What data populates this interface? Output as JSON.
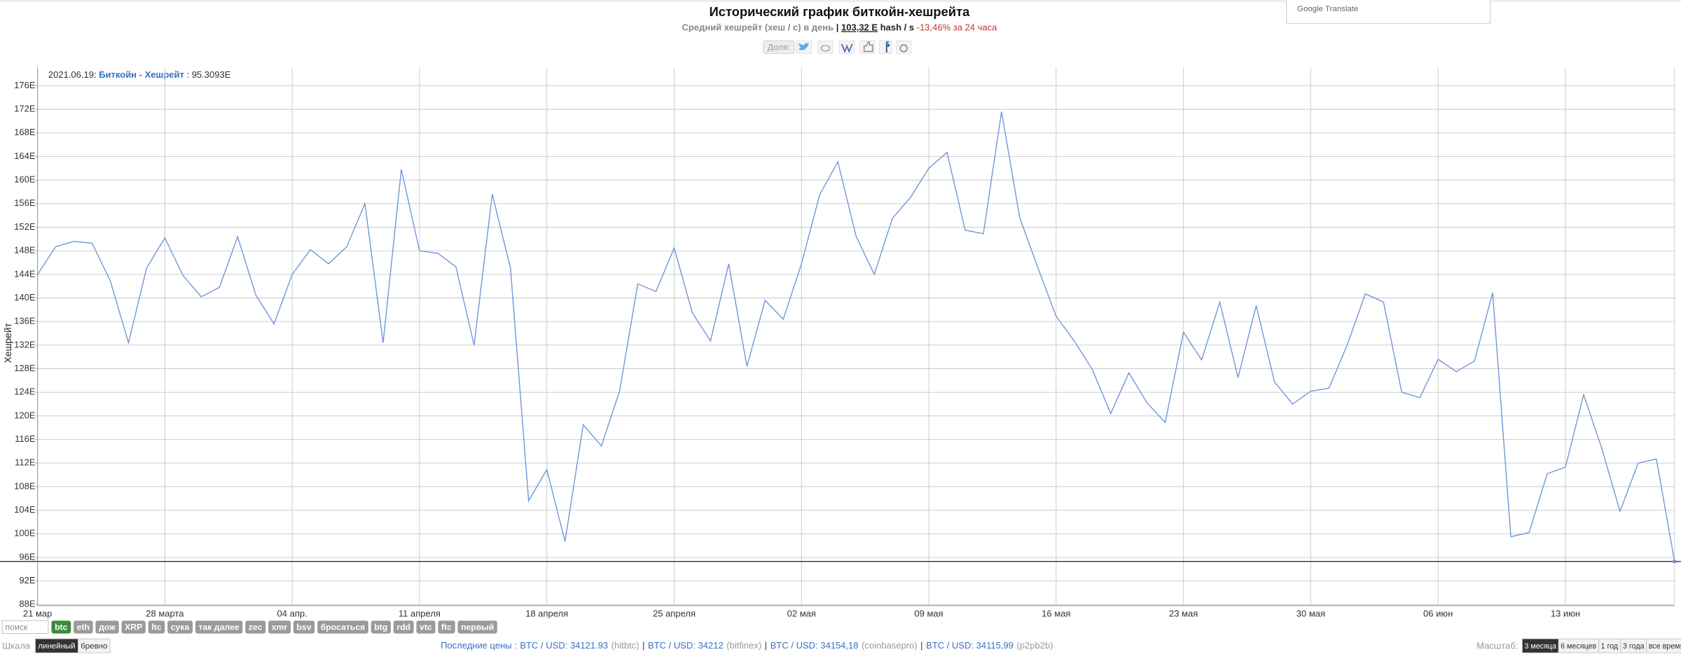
{
  "page": {
    "title": "Исторический график биткойн-хешрейта",
    "subtitle": {
      "label": "Средний хешрейт (хеш / с) в день",
      "separator": "|",
      "current": "103,32 E",
      "unit": "hash / s",
      "change": "-13,46% за 24 часа"
    },
    "share": "Доля:",
    "translate": "Google Translate",
    "search": "поиск",
    "tags": [
      "btc",
      "eth",
      "дож",
      "XRP",
      "ltc",
      "сука",
      "так далее",
      "zec",
      "xmr",
      "bsv",
      "бросаться",
      "btg",
      "rdd",
      "vtc",
      "ftc",
      "первый"
    ],
    "scale_label": "Шкала",
    "scale_options": [
      "линейный",
      "бревно"
    ],
    "prices_label": "Последние цены :",
    "prices": [
      {
        "pair": "BTC / USD: 34121.93",
        "exchange": "(hitbtc)"
      },
      {
        "pair": "BTC / USD: 34212",
        "exchange": "(bitfinex)"
      },
      {
        "pair": "BTC / USD: 34154,18",
        "exchange": "(coinbasepro)"
      },
      {
        "pair": "BTC / USD: 34115,99",
        "exchange": "(p2pb2b)"
      }
    ],
    "price_separator": "|",
    "zoom_label": "Масштаб:",
    "zoom_options": [
      "3 месяца",
      "6 месяцев",
      "1 год",
      "3 года",
      "все время"
    ]
  },
  "chart_data": {
    "type": "line",
    "ylabel": "Хешрейт",
    "tooltip": {
      "date": "2021.06.19:",
      "value_label": ": 95.3093E"
    },
    "log_scale": false,
    "grid": true,
    "categories": [
      "21 мар",
      null,
      null,
      null,
      null,
      null,
      null,
      "28 марта",
      null,
      null,
      null,
      null,
      null,
      null,
      "04 апр.",
      null,
      null,
      null,
      null,
      null,
      null,
      "11 апреля",
      null,
      null,
      null,
      null,
      null,
      null,
      "18 апреля",
      null,
      null,
      null,
      null,
      null,
      null,
      "25 апреля",
      null,
      null,
      null,
      null,
      null,
      null,
      "02 мая",
      null,
      null,
      null,
      null,
      null,
      null,
      "09 мая",
      null,
      null,
      null,
      null,
      null,
      null,
      "16 мая",
      null,
      null,
      null,
      null,
      null,
      null,
      "23 мая",
      null,
      null,
      null,
      null,
      null,
      null,
      "30 мая",
      null,
      null,
      null,
      null,
      null,
      null,
      "06 июн",
      null,
      null,
      null,
      null,
      null,
      null,
      "13 июн",
      null,
      null,
      null,
      null,
      null,
      null
    ],
    "series": [
      {
        "name": "Биткойн - Хешрейт",
        "color": "#6f95d9",
        "values": [
          144.0,
          148.7,
          149.6,
          149.3,
          142.9,
          132.4,
          145.1,
          150.2,
          143.8,
          140.2,
          141.8,
          150.4,
          140.5,
          135.6,
          144.0,
          148.2,
          145.8,
          148.7,
          156.0,
          132.4,
          161.8,
          148.0,
          147.6,
          145.3,
          132.0,
          157.6,
          145.1,
          105.6,
          110.9,
          98.7,
          118.5,
          114.9,
          124.2,
          142.4,
          141.1,
          148.5,
          137.5,
          132.7,
          145.8,
          128.4,
          139.6,
          136.4,
          145.8,
          157.5,
          163.1,
          150.5,
          144.0,
          153.5,
          157.1,
          162.0,
          164.7,
          151.5,
          150.9,
          171.6,
          153.6,
          145.1,
          136.9,
          132.7,
          127.8,
          120.4,
          127.3,
          122.2,
          118.9,
          134.2,
          129.5,
          139.3,
          126.5,
          138.7,
          125.8,
          122.0,
          124.2,
          124.7,
          132.0,
          140.7,
          139.3,
          124.0,
          123.1,
          129.6,
          127.5,
          129.3,
          140.9,
          99.5,
          100.2,
          110.2,
          111.3,
          123.6,
          114.5,
          103.8,
          112.0,
          112.7,
          95.3093
        ]
      }
    ],
    "ylim": [
      88,
      176
    ],
    "yticks": [
      {
        "value": 88,
        "label": "88E"
      },
      {
        "value": 92,
        "label": "92E"
      },
      {
        "value": 96,
        "label": "96E"
      },
      {
        "value": 100,
        "label": "100E"
      },
      {
        "value": 104,
        "label": "104E"
      },
      {
        "value": 108,
        "label": "108E"
      },
      {
        "value": 112,
        "label": "112E"
      },
      {
        "value": 116,
        "label": "116E"
      },
      {
        "value": 120,
        "label": "120E"
      },
      {
        "value": 124,
        "label": "124E"
      },
      {
        "value": 128,
        "label": "128E"
      },
      {
        "value": 132,
        "label": "132E"
      },
      {
        "value": 136,
        "label": "136E"
      },
      {
        "value": 140,
        "label": "140E"
      },
      {
        "value": 144,
        "label": "144E"
      },
      {
        "value": 148,
        "label": "148E"
      },
      {
        "value": 152,
        "label": "152E"
      },
      {
        "value": 156,
        "label": "156E"
      },
      {
        "value": 160,
        "label": "160E"
      },
      {
        "value": 164,
        "label": "164E"
      },
      {
        "value": 168,
        "label": "168E"
      },
      {
        "value": 172,
        "label": "172E"
      },
      {
        "value": 176,
        "label": "176E"
      }
    ]
  }
}
